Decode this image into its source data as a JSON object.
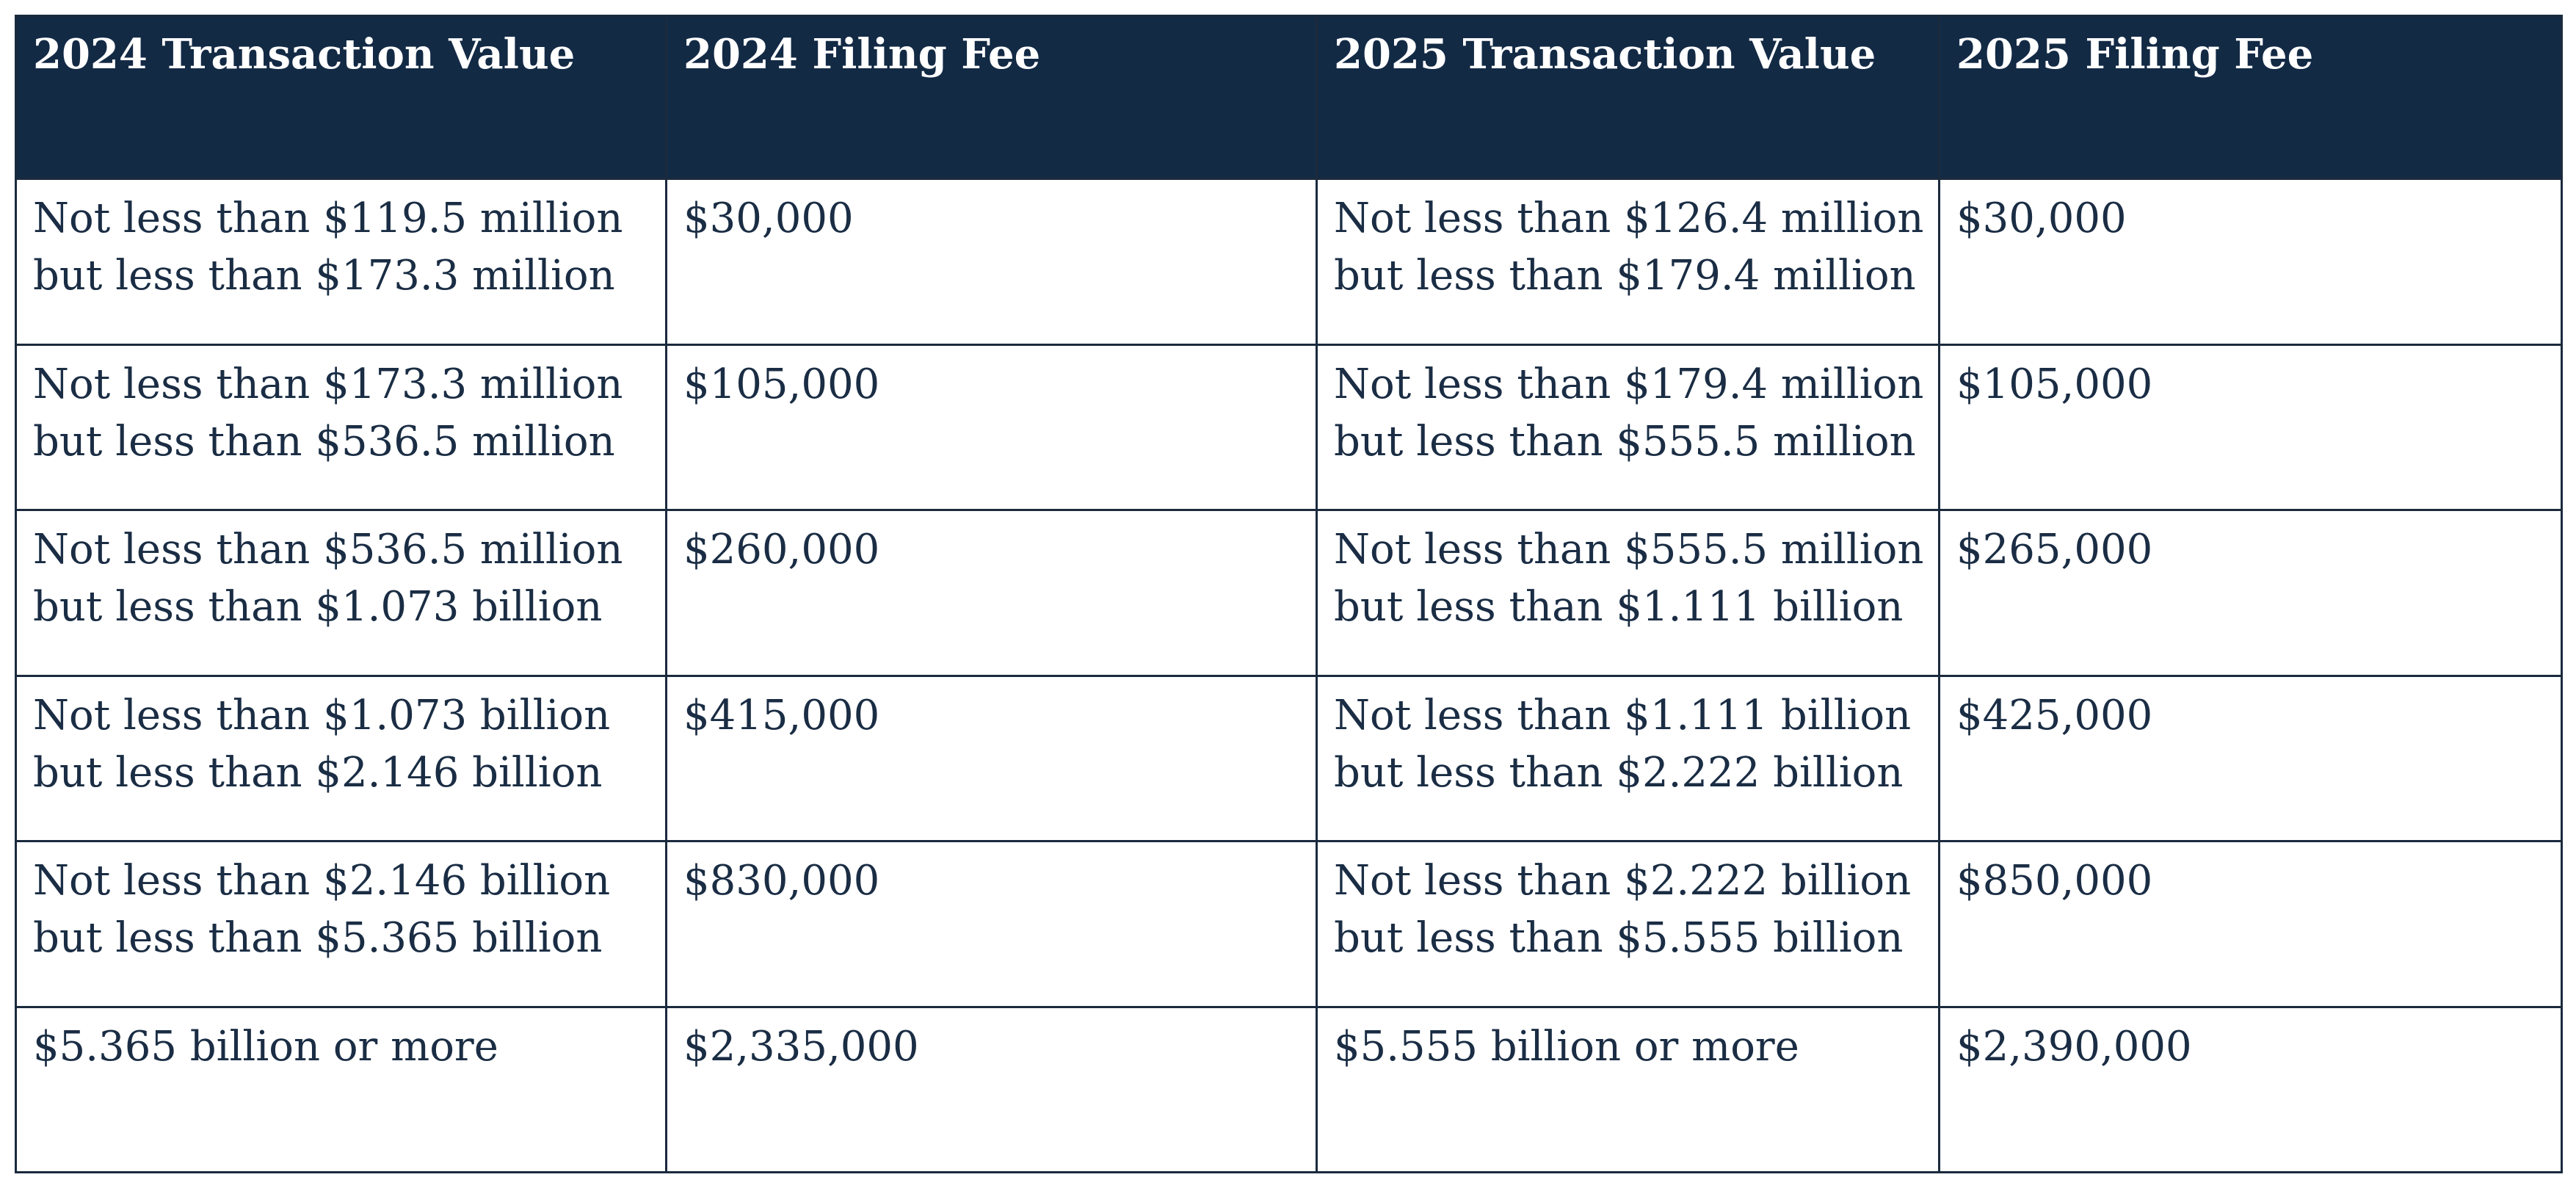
{
  "table": {
    "headers": [
      "2024 Transaction Value",
      "2024 Filing Fee",
      "2025 Transaction Value",
      "2025 Filing Fee"
    ],
    "rows": [
      {
        "tv2024": [
          "Not less than $119.5 million",
          "but less than $173.3 million"
        ],
        "fee2024": "$30,000",
        "tv2025": [
          "Not less than $126.4 million",
          "but less than $179.4 million"
        ],
        "fee2025": "$30,000"
      },
      {
        "tv2024": [
          "Not less than $173.3 million",
          "but less than $536.5 million"
        ],
        "fee2024": "$105,000",
        "tv2025": [
          "Not less than $179.4 million",
          "but less than $555.5 million"
        ],
        "fee2025": "$105,000"
      },
      {
        "tv2024": [
          "Not less than $536.5 million",
          "but less than $1.073 billion"
        ],
        "fee2024": "$260,000",
        "tv2025": [
          "Not less than $555.5 million",
          "but less than $1.111 billion"
        ],
        "fee2025": "$265,000"
      },
      {
        "tv2024": [
          "Not less than $1.073 billion",
          "but less than $2.146 billion"
        ],
        "fee2024": "$415,000",
        "tv2025": [
          "Not less than $1.111 billion",
          "but less than $2.222 billion"
        ],
        "fee2025": "$425,000"
      },
      {
        "tv2024": [
          "Not less than $2.146 billion",
          "but less than $5.365 billion"
        ],
        "fee2024": "$830,000",
        "tv2025": [
          "Not less than $2.222 billion",
          "but less than $5.555 billion"
        ],
        "fee2025": "$850,000"
      },
      {
        "tv2024": [
          "$5.365 billion or more"
        ],
        "fee2024": "$2,335,000",
        "tv2025": [
          "$5.555 billion or more"
        ],
        "fee2025": "$2,390,000"
      }
    ]
  },
  "colors": {
    "header_background": "#132a45",
    "header_text": "#ffffff",
    "body_text": "#1a2d44",
    "border": "#1b2a3d"
  }
}
